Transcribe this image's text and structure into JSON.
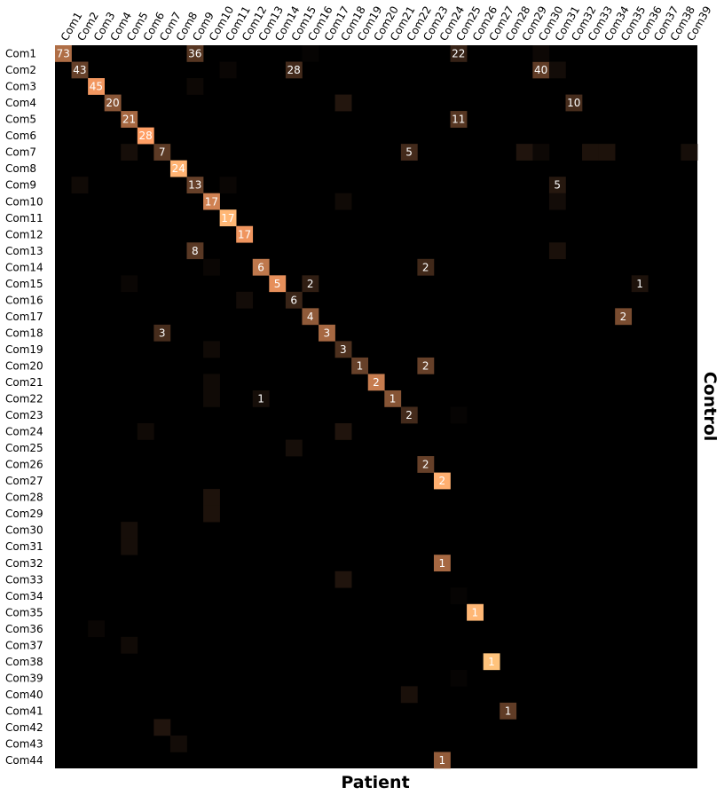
{
  "chart_data": {
    "type": "heatmap",
    "xlabel": "Patient",
    "ylabel": "Control",
    "colormap": "copper",
    "background": "#000000",
    "columns": [
      "Com1",
      "Com2",
      "Com3",
      "Com4",
      "Com5",
      "Com6",
      "Com7",
      "Com8",
      "Com9",
      "Com10",
      "Com11",
      "Com12",
      "Com13",
      "Com14",
      "Com15",
      "Com16",
      "Com17",
      "Com18",
      "Com19",
      "Com20",
      "Com21",
      "Com22",
      "Com23",
      "Com24",
      "Com25",
      "Com26",
      "Com27",
      "Com28",
      "Com29",
      "Com30",
      "Com31",
      "Com32",
      "Com33",
      "Com34",
      "Com35",
      "Com36",
      "Com37",
      "Com38",
      "Com39"
    ],
    "rows": [
      "Com1",
      "Com2",
      "Com3",
      "Com4",
      "Com5",
      "Com6",
      "Com7",
      "Com8",
      "Com9",
      "Com10",
      "Com11",
      "Com12",
      "Com13",
      "Com14",
      "Com15",
      "Com16",
      "Com17",
      "Com18",
      "Com19",
      "Com20",
      "Com21",
      "Com22",
      "Com23",
      "Com24",
      "Com25",
      "Com26",
      "Com27",
      "Com28",
      "Com29",
      "Com30",
      "Com31",
      "Com32",
      "Com33",
      "Com34",
      "Com35",
      "Com36",
      "Com37",
      "Com38",
      "Com39",
      "Com40",
      "Com41",
      "Com42",
      "Com43",
      "Com44"
    ],
    "cells": [
      {
        "row": 1,
        "col": 1,
        "label": "73",
        "intensity": 0.55
      },
      {
        "row": 1,
        "col": 9,
        "label": "36",
        "intensity": 0.27
      },
      {
        "row": 1,
        "col": 25,
        "label": "22",
        "intensity": 0.17
      },
      {
        "row": 2,
        "col": 2,
        "label": "43",
        "intensity": 0.32
      },
      {
        "row": 2,
        "col": 15,
        "label": "28",
        "intensity": 0.21
      },
      {
        "row": 2,
        "col": 30,
        "label": "40",
        "intensity": 0.3
      },
      {
        "row": 3,
        "col": 3,
        "label": "45",
        "intensity": 0.76
      },
      {
        "row": 4,
        "col": 4,
        "label": "20",
        "intensity": 0.43
      },
      {
        "row": 4,
        "col": 32,
        "label": "10",
        "intensity": 0.22
      },
      {
        "row": 5,
        "col": 5,
        "label": "21",
        "intensity": 0.52
      },
      {
        "row": 5,
        "col": 25,
        "label": "11",
        "intensity": 0.27
      },
      {
        "row": 6,
        "col": 6,
        "label": "28",
        "intensity": 0.8
      },
      {
        "row": 7,
        "col": 7,
        "label": "7",
        "intensity": 0.29
      },
      {
        "row": 7,
        "col": 22,
        "label": "5",
        "intensity": 0.21
      },
      {
        "row": 8,
        "col": 8,
        "label": "24",
        "intensity": 0.9
      },
      {
        "row": 9,
        "col": 9,
        "label": "13",
        "intensity": 0.32
      },
      {
        "row": 9,
        "col": 31,
        "label": "5",
        "intensity": 0.12
      },
      {
        "row": 10,
        "col": 10,
        "label": "17",
        "intensity": 0.65
      },
      {
        "row": 11,
        "col": 11,
        "label": "17",
        "intensity": 0.92
      },
      {
        "row": 12,
        "col": 12,
        "label": "17",
        "intensity": 0.75
      },
      {
        "row": 13,
        "col": 9,
        "label": "8",
        "intensity": 0.28
      },
      {
        "row": 14,
        "col": 13,
        "label": "6",
        "intensity": 0.6
      },
      {
        "row": 14,
        "col": 23,
        "label": "2",
        "intensity": 0.2
      },
      {
        "row": 15,
        "col": 14,
        "label": "5",
        "intensity": 0.72
      },
      {
        "row": 15,
        "col": 16,
        "label": "2",
        "intensity": 0.15
      },
      {
        "row": 15,
        "col": 36,
        "label": "1",
        "intensity": 0.09
      },
      {
        "row": 16,
        "col": 15,
        "label": "6",
        "intensity": 0.18
      },
      {
        "row": 17,
        "col": 16,
        "label": "4",
        "intensity": 0.45
      },
      {
        "row": 17,
        "col": 35,
        "label": "2",
        "intensity": 0.38
      },
      {
        "row": 18,
        "col": 7,
        "label": "3",
        "intensity": 0.22
      },
      {
        "row": 18,
        "col": 17,
        "label": "3",
        "intensity": 0.52
      },
      {
        "row": 19,
        "col": 18,
        "label": "3",
        "intensity": 0.24
      },
      {
        "row": 20,
        "col": 19,
        "label": "1",
        "intensity": 0.32
      },
      {
        "row": 20,
        "col": 23,
        "label": "2",
        "intensity": 0.32
      },
      {
        "row": 21,
        "col": 20,
        "label": "2",
        "intensity": 0.62
      },
      {
        "row": 22,
        "col": 13,
        "label": "1",
        "intensity": 0.07
      },
      {
        "row": 22,
        "col": 21,
        "label": "1",
        "intensity": 0.42
      },
      {
        "row": 23,
        "col": 22,
        "label": "2",
        "intensity": 0.21
      },
      {
        "row": 26,
        "col": 23,
        "label": "2",
        "intensity": 0.32
      },
      {
        "row": 27,
        "col": 24,
        "label": "2",
        "intensity": 0.88
      },
      {
        "row": 32,
        "col": 24,
        "label": "1",
        "intensity": 0.52
      },
      {
        "row": 35,
        "col": 26,
        "label": "1",
        "intensity": 0.92
      },
      {
        "row": 38,
        "col": 27,
        "label": "1",
        "intensity": 0.98
      },
      {
        "row": 41,
        "col": 28,
        "label": "1",
        "intensity": 0.3
      },
      {
        "row": 44,
        "col": 24,
        "label": "1",
        "intensity": 0.46
      },
      {
        "row": 1,
        "col": 30,
        "intensity": 0.04
      },
      {
        "row": 1,
        "col": 16,
        "intensity": 0.02
      },
      {
        "row": 2,
        "col": 31,
        "intensity": 0.06
      },
      {
        "row": 2,
        "col": 11,
        "intensity": 0.03
      },
      {
        "row": 3,
        "col": 9,
        "intensity": 0.04
      },
      {
        "row": 4,
        "col": 18,
        "intensity": 0.11
      },
      {
        "row": 7,
        "col": 5,
        "intensity": 0.07
      },
      {
        "row": 7,
        "col": 29,
        "intensity": 0.1
      },
      {
        "row": 7,
        "col": 30,
        "intensity": 0.04
      },
      {
        "row": 7,
        "col": 33,
        "intensity": 0.09
      },
      {
        "row": 7,
        "col": 34,
        "intensity": 0.09
      },
      {
        "row": 7,
        "col": 39,
        "intensity": 0.07
      },
      {
        "row": 9,
        "col": 2,
        "intensity": 0.05
      },
      {
        "row": 9,
        "col": 11,
        "intensity": 0.03
      },
      {
        "row": 10,
        "col": 18,
        "intensity": 0.05
      },
      {
        "row": 10,
        "col": 31,
        "intensity": 0.06
      },
      {
        "row": 13,
        "col": 31,
        "intensity": 0.08
      },
      {
        "row": 14,
        "col": 10,
        "intensity": 0.03
      },
      {
        "row": 15,
        "col": 5,
        "intensity": 0.03
      },
      {
        "row": 16,
        "col": 12,
        "intensity": 0.06
      },
      {
        "row": 19,
        "col": 10,
        "intensity": 0.05
      },
      {
        "row": 21,
        "col": 10,
        "intensity": 0.05
      },
      {
        "row": 22,
        "col": 10,
        "intensity": 0.05
      },
      {
        "row": 23,
        "col": 25,
        "intensity": 0.02
      },
      {
        "row": 24,
        "col": 6,
        "intensity": 0.05
      },
      {
        "row": 24,
        "col": 18,
        "intensity": 0.1
      },
      {
        "row": 25,
        "col": 15,
        "intensity": 0.07
      },
      {
        "row": 28,
        "col": 10,
        "intensity": 0.09
      },
      {
        "row": 29,
        "col": 10,
        "intensity": 0.09
      },
      {
        "row": 30,
        "col": 5,
        "intensity": 0.07
      },
      {
        "row": 31,
        "col": 5,
        "intensity": 0.07
      },
      {
        "row": 33,
        "col": 18,
        "intensity": 0.1
      },
      {
        "row": 34,
        "col": 25,
        "intensity": 0.02
      },
      {
        "row": 36,
        "col": 3,
        "intensity": 0.03
      },
      {
        "row": 37,
        "col": 5,
        "intensity": 0.05
      },
      {
        "row": 39,
        "col": 25,
        "intensity": 0.02
      },
      {
        "row": 40,
        "col": 22,
        "intensity": 0.08
      },
      {
        "row": 42,
        "col": 7,
        "intensity": 0.1
      },
      {
        "row": 43,
        "col": 8,
        "intensity": 0.06
      }
    ]
  }
}
